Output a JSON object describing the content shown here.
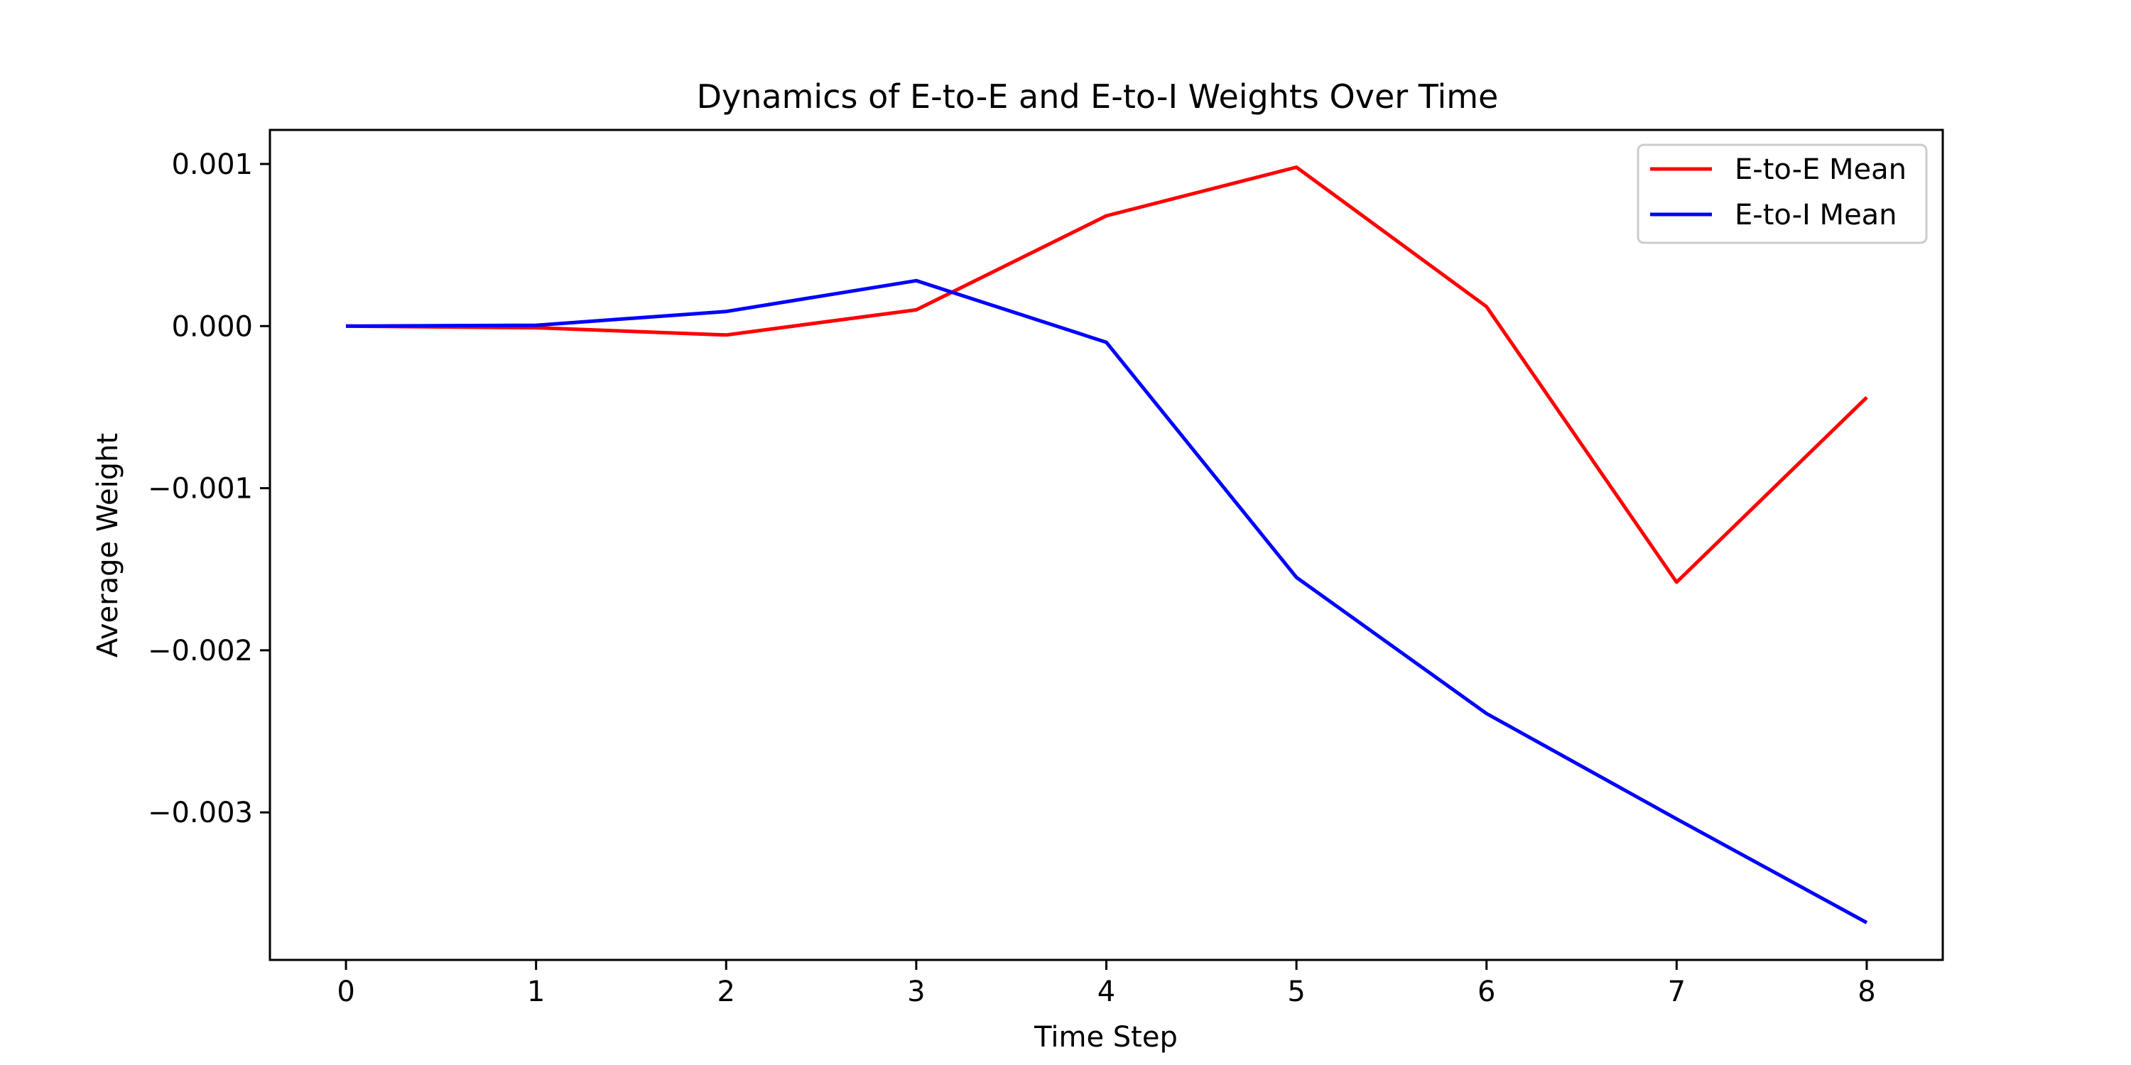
{
  "chart_data": {
    "type": "line",
    "title": "Dynamics of E-to-E and E-to-I Weights Over Time",
    "xlabel": "Time Step",
    "ylabel": "Average Weight",
    "x": [
      0,
      1,
      2,
      3,
      4,
      5,
      6,
      7,
      8
    ],
    "xlim": [
      -0.4,
      8.4
    ],
    "ylim": [
      -0.00391,
      0.00121
    ],
    "xticks": [
      0,
      1,
      2,
      3,
      4,
      5,
      6,
      7,
      8
    ],
    "xtick_labels": [
      "0",
      "1",
      "2",
      "3",
      "4",
      "5",
      "6",
      "7",
      "8"
    ],
    "yticks": [
      0.001,
      0.0,
      -0.001,
      -0.002,
      -0.003
    ],
    "ytick_labels": [
      "0.001",
      "0.000",
      "−0.001",
      "−0.002",
      "−0.003"
    ],
    "grid": false,
    "legend_position": "top-right",
    "series": [
      {
        "name": "E-to-E Mean",
        "color": "#ff0000",
        "values": [
          0.0,
          -1e-05,
          -5.5e-05,
          0.0001,
          0.00068,
          0.00098,
          0.00012,
          -0.00158,
          -0.00044
        ]
      },
      {
        "name": "E-to-I Mean",
        "color": "#0000ff",
        "values": [
          0.0,
          5e-06,
          9e-05,
          0.00028,
          -0.0001,
          -0.00155,
          -0.00239,
          -0.00304,
          -0.00368
        ]
      }
    ]
  }
}
